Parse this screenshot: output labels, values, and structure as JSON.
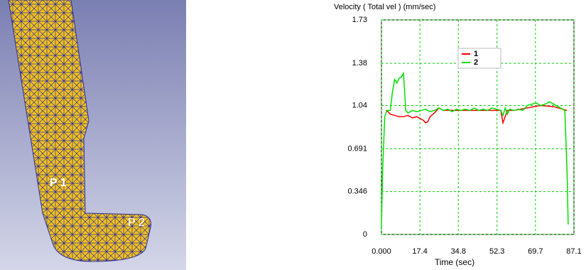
{
  "image": {
    "labels": [
      "P 1",
      "P 2"
    ]
  },
  "chart_data": {
    "type": "line",
    "title": "Velocity ( Total vel )  (mm/sec)",
    "x_label": "Time (sec)",
    "xlim": [
      0,
      87.1
    ],
    "ylim": [
      0,
      1.73
    ],
    "xticks": [
      {
        "value": 0,
        "label": "0.000"
      },
      17.4,
      34.8,
      52.3,
      69.7,
      87.1
    ],
    "yticks": [
      0,
      0.346,
      0.691,
      1.04,
      1.38,
      1.73
    ],
    "grid": true,
    "series": [
      {
        "name": "1",
        "color": "#ff0000",
        "x": [
          2,
          3,
          4,
          6,
          8,
          10,
          12,
          14,
          16,
          18,
          19,
          20,
          21,
          22,
          24,
          26,
          28,
          32,
          36,
          40,
          44,
          48,
          52,
          54,
          55,
          56,
          57,
          60,
          66,
          72,
          78,
          84
        ],
        "values": [
          1.0,
          0.99,
          0.97,
          0.96,
          0.95,
          0.95,
          0.96,
          0.94,
          0.95,
          0.93,
          0.92,
          0.9,
          0.91,
          0.95,
          0.98,
          1.02,
          1.0,
          1.0,
          1.0,
          1.0,
          1.0,
          1.0,
          1.0,
          1.0,
          0.9,
          0.95,
          1.0,
          1.0,
          1.02,
          1.04,
          1.03,
          1.0
        ]
      },
      {
        "name": "2",
        "color": "#00e000",
        "x": [
          0,
          0.5,
          1.5,
          2.5,
          4,
          5,
          6,
          7,
          8,
          9,
          10,
          10.5,
          11,
          12,
          14,
          16,
          18,
          20,
          22,
          24,
          26,
          28,
          30,
          32,
          34,
          36,
          38,
          40,
          42,
          44,
          46,
          48,
          50,
          52,
          54,
          55,
          56,
          57,
          58,
          60,
          62,
          64,
          66,
          68,
          70,
          72,
          74,
          76,
          78,
          80,
          82,
          83,
          84,
          84.5
        ],
        "values": [
          0.05,
          0.5,
          0.95,
          1.0,
          1.0,
          1.15,
          1.25,
          1.22,
          1.26,
          1.27,
          1.3,
          1.15,
          1.0,
          0.98,
          1.0,
          0.99,
          1.0,
          1.01,
          0.99,
          1.0,
          1.02,
          1.0,
          1.01,
          0.99,
          1.01,
          1.0,
          1.01,
          1.0,
          1.02,
          1.0,
          1.01,
          1.0,
          1.02,
          1.01,
          1.0,
          0.96,
          1.02,
          0.97,
          1.01,
          1.0,
          1.01,
          1.0,
          1.04,
          1.05,
          1.06,
          1.04,
          1.05,
          1.07,
          1.05,
          1.03,
          1.01,
          1.0,
          0.5,
          0.08
        ]
      }
    ]
  }
}
